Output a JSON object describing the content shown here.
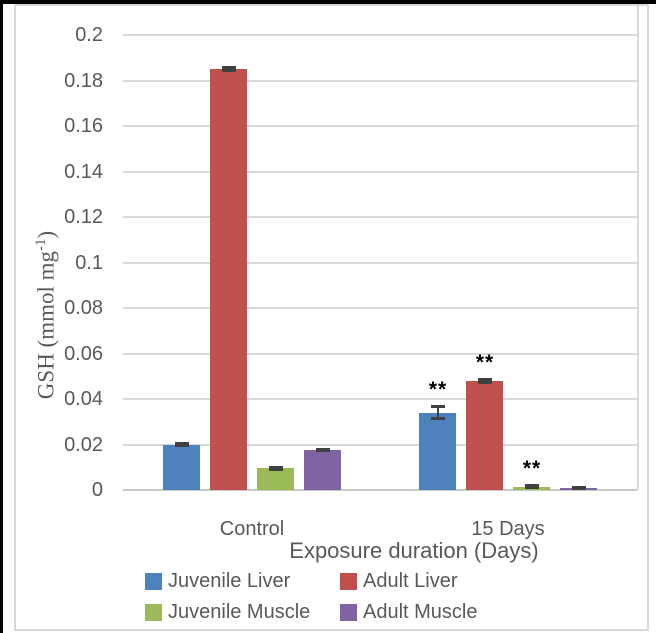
{
  "frame": {
    "outer_border_color": "#000000",
    "chart_border_color": "#D9D9D9",
    "background": "#FFFFFF"
  },
  "chart_data": {
    "type": "bar",
    "title": "",
    "xlabel": "Exposure duration (Days)",
    "ylabel": "GSH (mmol mg-1)",
    "ylabel_parts": {
      "base": "GSH (mmol mg",
      "sup": "-1",
      "close": ")"
    },
    "categories": [
      "Control",
      "15 Days"
    ],
    "series": [
      {
        "name": "Juvenile Liver",
        "color": "#4F81BD",
        "values": [
          0.02,
          0.034
        ],
        "errors": [
          0.0005,
          0.003
        ],
        "significance": [
          "",
          "**"
        ]
      },
      {
        "name": "Adult Liver",
        "color": "#C0504D",
        "values": [
          0.185,
          0.048
        ],
        "errors": [
          0.001,
          0.001
        ],
        "significance": [
          "",
          "**"
        ]
      },
      {
        "name": "Juvenile Muscle",
        "color": "#9BBB59",
        "values": [
          0.0095,
          0.0015
        ],
        "errors": [
          0.0005,
          0.0005
        ],
        "significance": [
          "",
          "**"
        ]
      },
      {
        "name": "Adult Muscle",
        "color": "#8064A2",
        "values": [
          0.0175,
          0.001
        ],
        "errors": [
          0.0005,
          0.0005
        ],
        "significance": [
          "",
          ""
        ]
      }
    ],
    "ylim": [
      0,
      0.2
    ],
    "yticks": [
      0,
      0.02,
      0.04,
      0.06,
      0.08,
      0.1,
      0.12,
      0.14,
      0.16,
      0.18,
      0.2
    ],
    "ytick_labels": [
      "0",
      "0.02",
      "0.04",
      "0.06",
      "0.08",
      "0.1",
      "0.12",
      "0.14",
      "0.16",
      "0.18",
      "0.2"
    ],
    "grid": true,
    "legend_position": "bottom",
    "gridline_color": "#D9D9D9",
    "axis_line_color": "#C9C9C9",
    "axis_text_color": "#595959",
    "error_bar_color": "#404040",
    "significance_color": "#000000"
  }
}
